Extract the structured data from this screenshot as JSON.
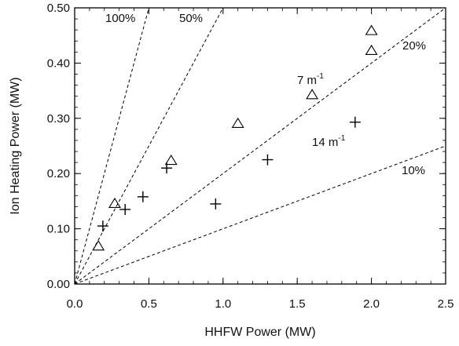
{
  "chart_data": {
    "type": "scatter",
    "xlabel": "HHFW Power (MW)",
    "ylabel": "Ion Heating Power (MW)",
    "xlim": [
      0.0,
      2.5
    ],
    "ylim": [
      0.0,
      0.5
    ],
    "x_ticks": [
      "0.0",
      "0.5",
      "1.0",
      "1.5",
      "2.0",
      "2.5"
    ],
    "y_ticks": [
      "0.00",
      "0.10",
      "0.20",
      "0.30",
      "0.40",
      "0.50"
    ],
    "grid": false,
    "series": [
      {
        "name": "7 m⁻¹",
        "marker": "triangle",
        "points": [
          {
            "x": 0.16,
            "y": 0.068
          },
          {
            "x": 0.27,
            "y": 0.145
          },
          {
            "x": 0.65,
            "y": 0.223
          },
          {
            "x": 1.1,
            "y": 0.29
          },
          {
            "x": 1.6,
            "y": 0.342
          },
          {
            "x": 2.0,
            "y": 0.422
          },
          {
            "x": 2.0,
            "y": 0.458
          }
        ]
      },
      {
        "name": "14 m⁻¹",
        "marker": "plus",
        "points": [
          {
            "x": 0.19,
            "y": 0.105
          },
          {
            "x": 0.34,
            "y": 0.135
          },
          {
            "x": 0.46,
            "y": 0.158
          },
          {
            "x": 0.62,
            "y": 0.21
          },
          {
            "x": 0.95,
            "y": 0.145
          },
          {
            "x": 1.3,
            "y": 0.225
          },
          {
            "x": 1.89,
            "y": 0.293
          }
        ]
      }
    ],
    "reference_lines": [
      {
        "label": "100%",
        "slope": 1.0
      },
      {
        "label": "50%",
        "slope": 0.5
      },
      {
        "label": "20%",
        "slope": 0.2
      },
      {
        "label": "10%",
        "slope": 0.1
      }
    ],
    "annotations": [
      {
        "text": "7 m",
        "sup": "-1"
      },
      {
        "text": "14 m",
        "sup": "-1"
      }
    ]
  }
}
